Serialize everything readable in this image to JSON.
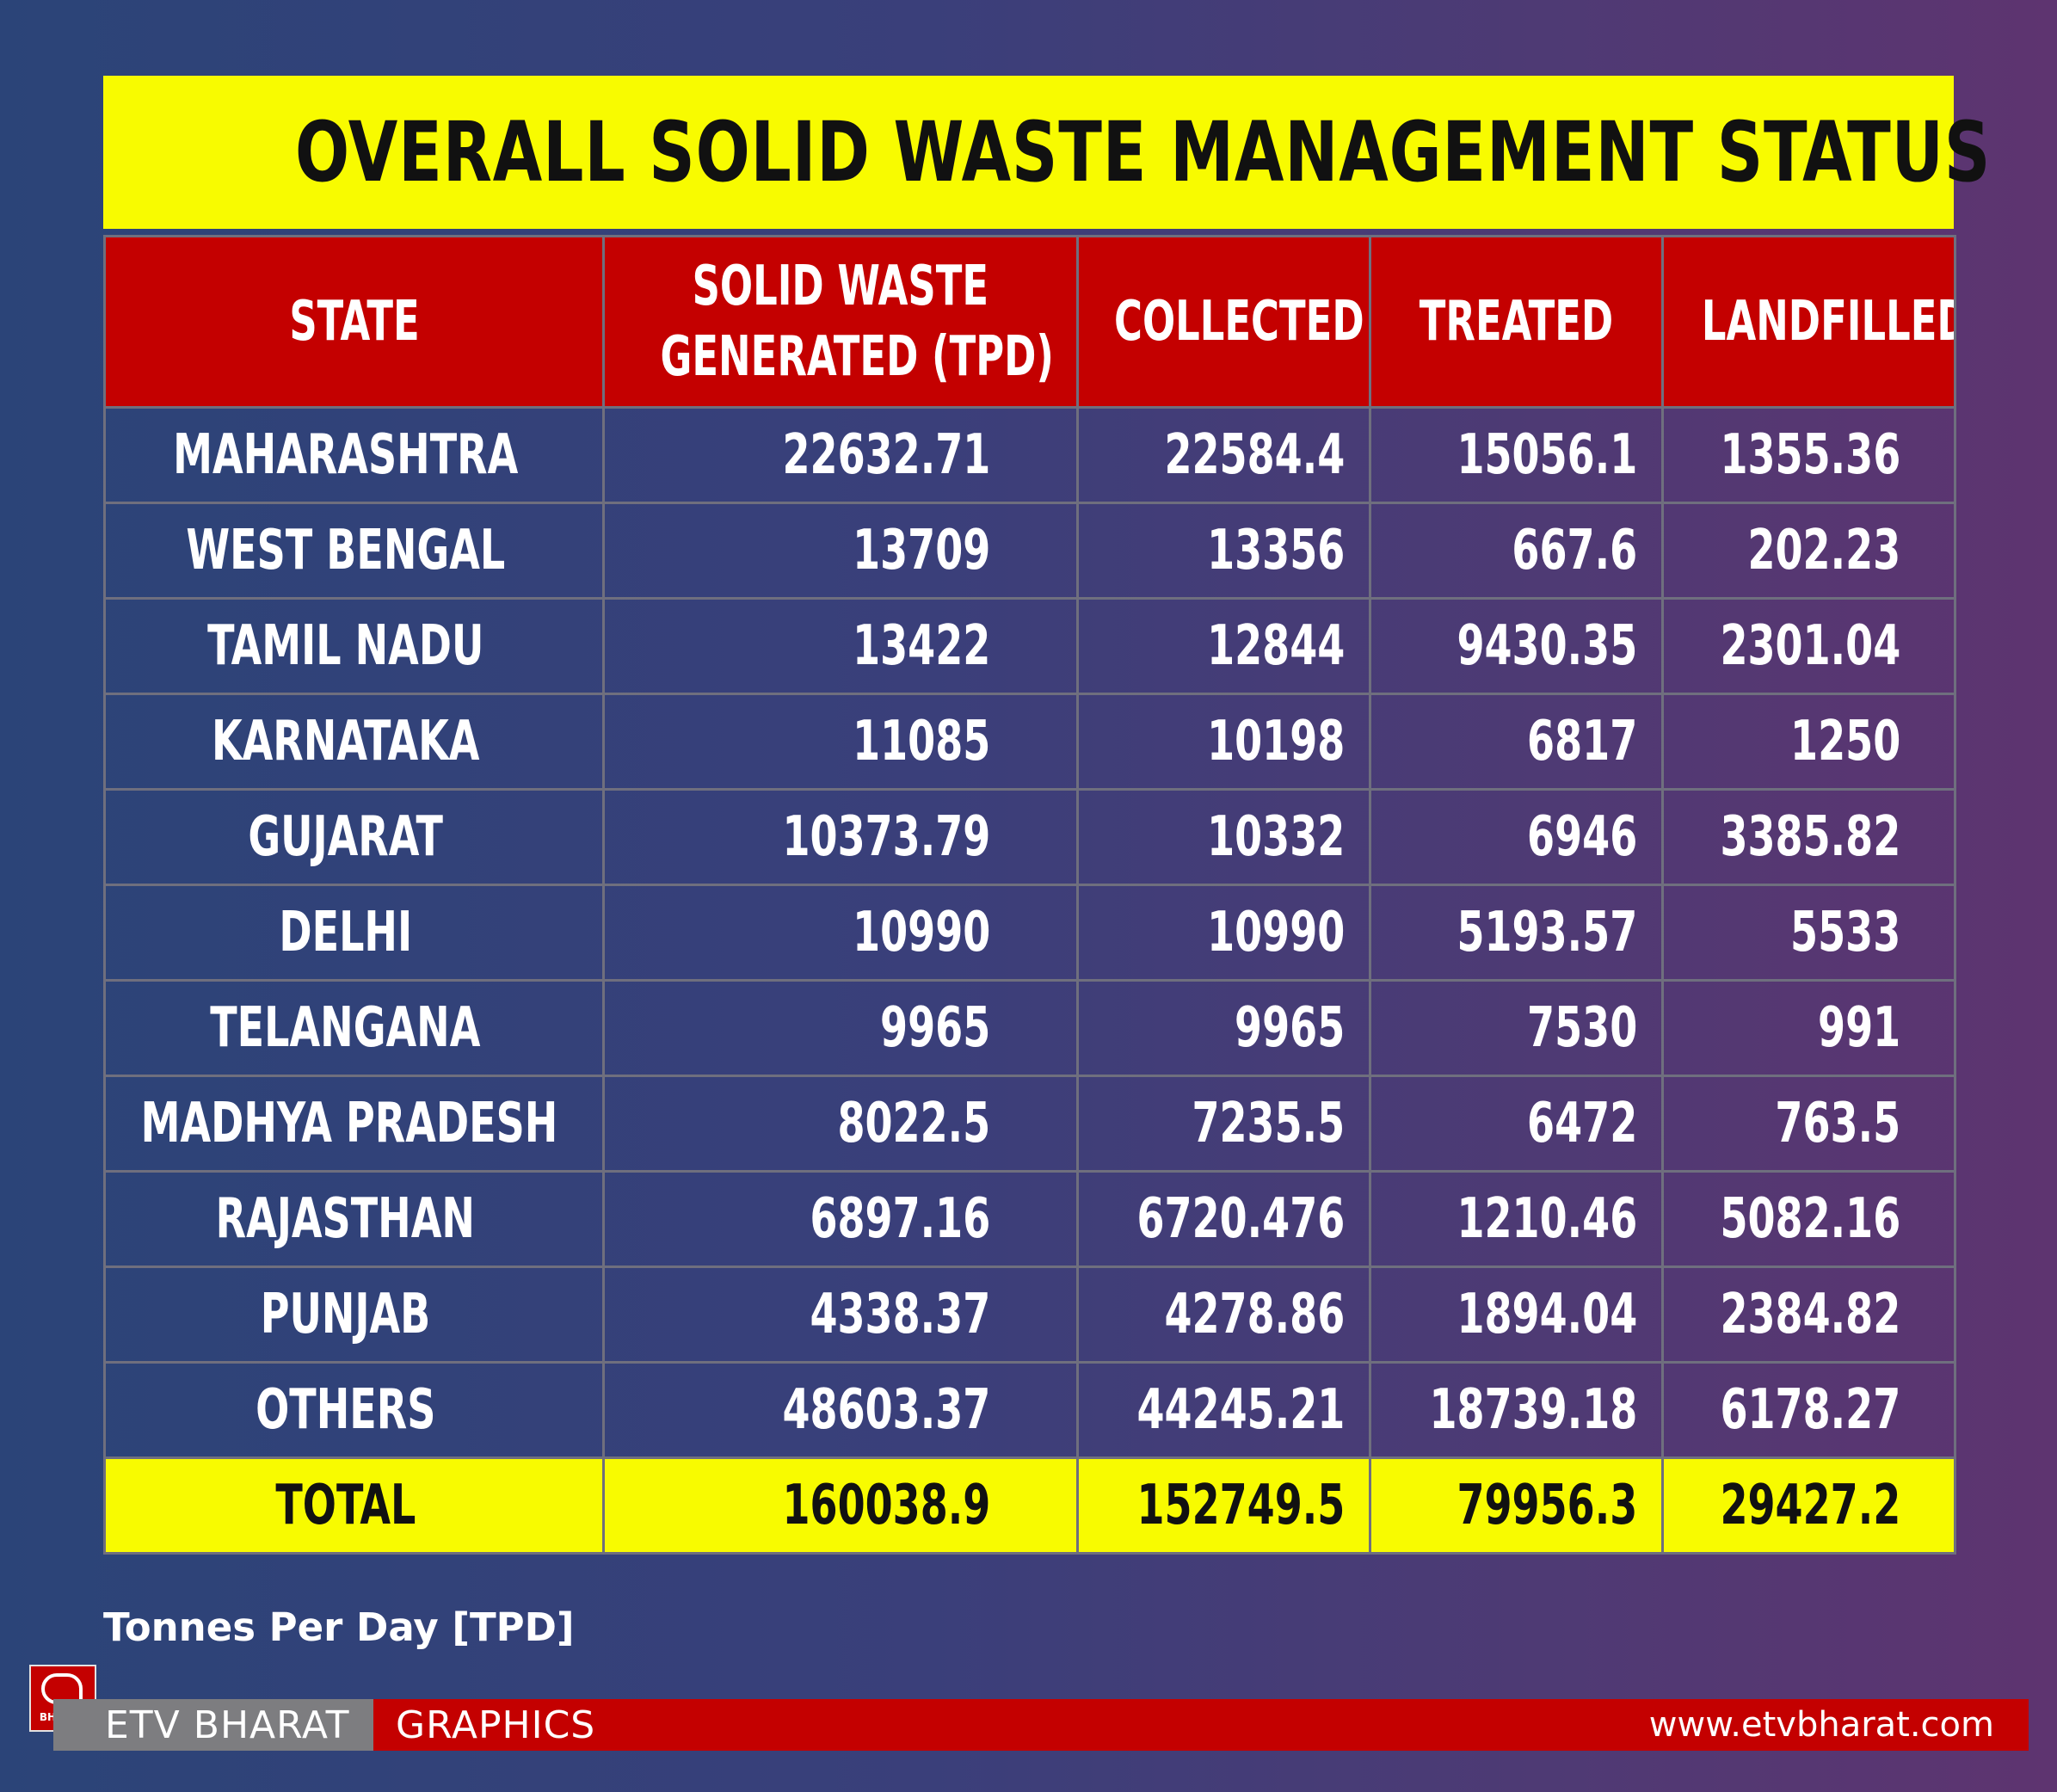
{
  "title": "OVERALL SOLID WASTE MANAGEMENT STATUS",
  "chart_data": {
    "type": "table",
    "title": "OVERALL SOLID WASTE MANAGEMENT STATUS",
    "columns": [
      {
        "line1": "STATE",
        "line2": ""
      },
      {
        "line1": "SOLID WASTE",
        "line2": "GENERATED (TPD)"
      },
      {
        "line1": "COLLECTED",
        "line2": ""
      },
      {
        "line1": "TREATED",
        "line2": ""
      },
      {
        "line1": "LANDFILLED",
        "line2": ""
      }
    ],
    "rows": [
      {
        "state": "MAHARASHTRA",
        "generated": "22632.71",
        "collected": "22584.4",
        "treated": "15056.1",
        "landfilled": "1355.36"
      },
      {
        "state": "WEST BENGAL",
        "generated": "13709",
        "collected": "13356",
        "treated": "667.6",
        "landfilled": "202.23"
      },
      {
        "state": "TAMIL NADU",
        "generated": "13422",
        "collected": "12844",
        "treated": "9430.35",
        "landfilled": "2301.04"
      },
      {
        "state": "KARNATAKA",
        "generated": "11085",
        "collected": "10198",
        "treated": "6817",
        "landfilled": "1250"
      },
      {
        "state": "GUJARAT",
        "generated": "10373.79",
        "collected": "10332",
        "treated": "6946",
        "landfilled": "3385.82"
      },
      {
        "state": "DELHI",
        "generated": "10990",
        "collected": "10990",
        "treated": "5193.57",
        "landfilled": "5533"
      },
      {
        "state": "TELANGANA",
        "generated": "9965",
        "collected": "9965",
        "treated": "7530",
        "landfilled": "991"
      },
      {
        "state": "MADHYA PRADESH",
        "generated": "8022.5",
        "collected": "7235.5",
        "treated": "6472",
        "landfilled": "763.5"
      },
      {
        "state": "RAJASTHAN",
        "generated": "6897.16",
        "collected": "6720.476",
        "treated": "1210.46",
        "landfilled": "5082.16"
      },
      {
        "state": "PUNJAB",
        "generated": "4338.37",
        "collected": "4278.86",
        "treated": "1894.04",
        "landfilled": "2384.82"
      },
      {
        "state": "OTHERS",
        "generated": "48603.37",
        "collected": "44245.21",
        "treated": "18739.18",
        "landfilled": "6178.27"
      }
    ],
    "total": {
      "state": "TOTAL",
      "generated": "160038.9",
      "collected": "152749.5",
      "treated": "79956.3",
      "landfilled": "29427.2"
    }
  },
  "note": "Tonnes Per Day [TPD]",
  "footer": {
    "logo_text": "BHARAT",
    "brand": "ETV BHARAT",
    "section": "GRAPHICS",
    "url": "www.etvbharat.com"
  },
  "colors": {
    "title_bg": "#f8fb00",
    "header_bg": "#c40000",
    "total_bg": "#f8fb00",
    "footer_red": "#c40000",
    "footer_grey": "#7d7d80"
  }
}
